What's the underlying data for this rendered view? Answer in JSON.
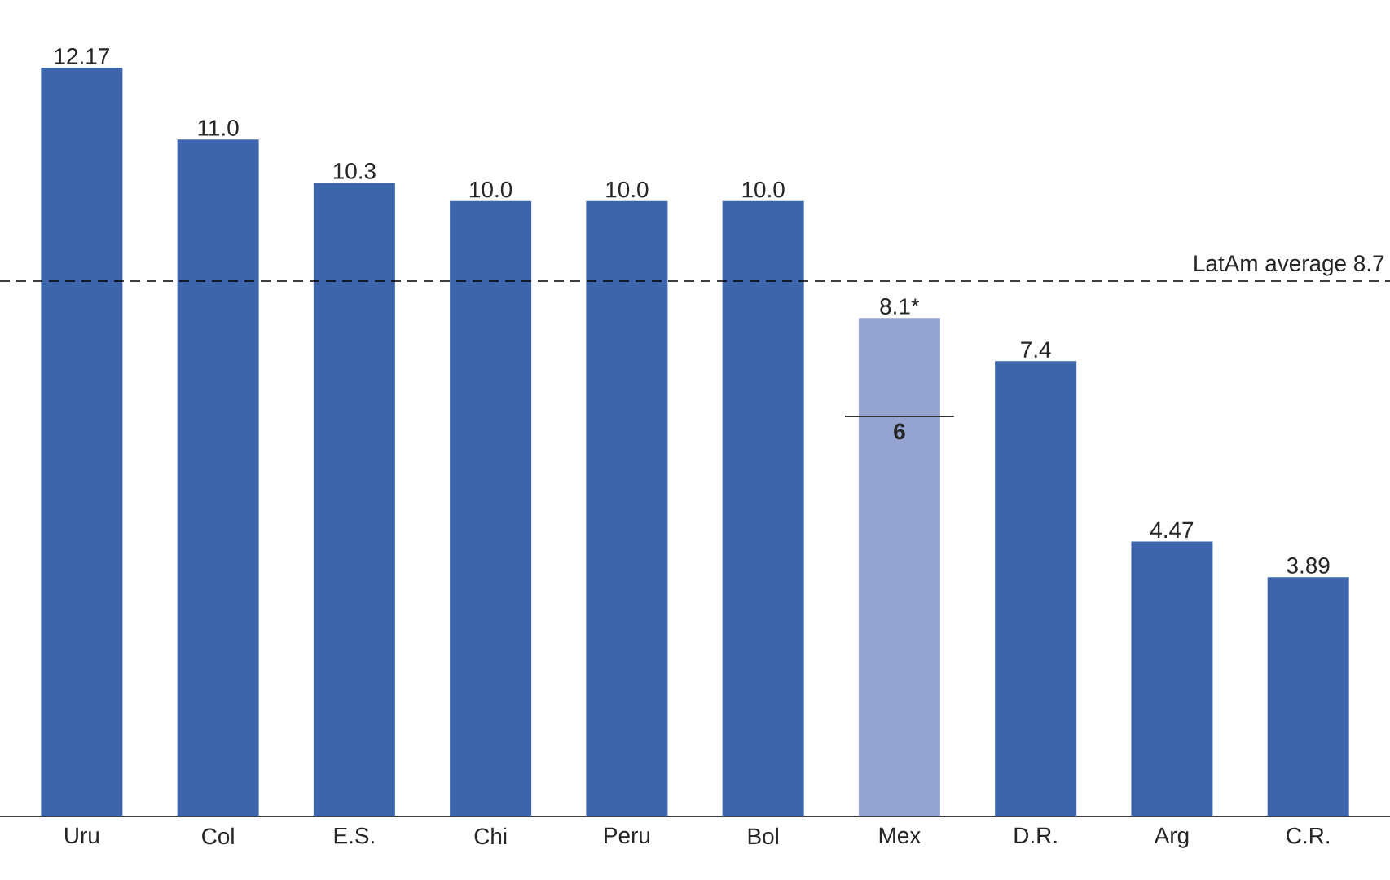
{
  "chart_data": {
    "type": "bar",
    "categories": [
      "Uru",
      "Col",
      "E.S.",
      "Chi",
      "Peru",
      "Bol",
      "Mex",
      "D.R.",
      "Arg",
      "C.R."
    ],
    "values": [
      12.17,
      11.0,
      10.3,
      10.0,
      10.0,
      10.0,
      8.1,
      7.4,
      4.47,
      3.89
    ],
    "value_labels": [
      "12.17",
      "11.0",
      "10.3",
      "10.0",
      "10.0",
      "10.0",
      "8.1*",
      "7.4",
      "4.47",
      "3.89"
    ],
    "colors": [
      "#3d65ab",
      "#3d65ab",
      "#3d65ab",
      "#3d65ab",
      "#3d65ab",
      "#3d65ab",
      "#94a3cf",
      "#3d65ab",
      "#3d65ab",
      "#3d65ab"
    ],
    "ref_lines": [
      {
        "axis": "y",
        "value": 8.7,
        "label": "LatAm average 8.7",
        "line_style": "dashed"
      },
      {
        "axis": "y",
        "value": 6.5,
        "label": "6",
        "line_style": "solid"
      }
    ]
  }
}
